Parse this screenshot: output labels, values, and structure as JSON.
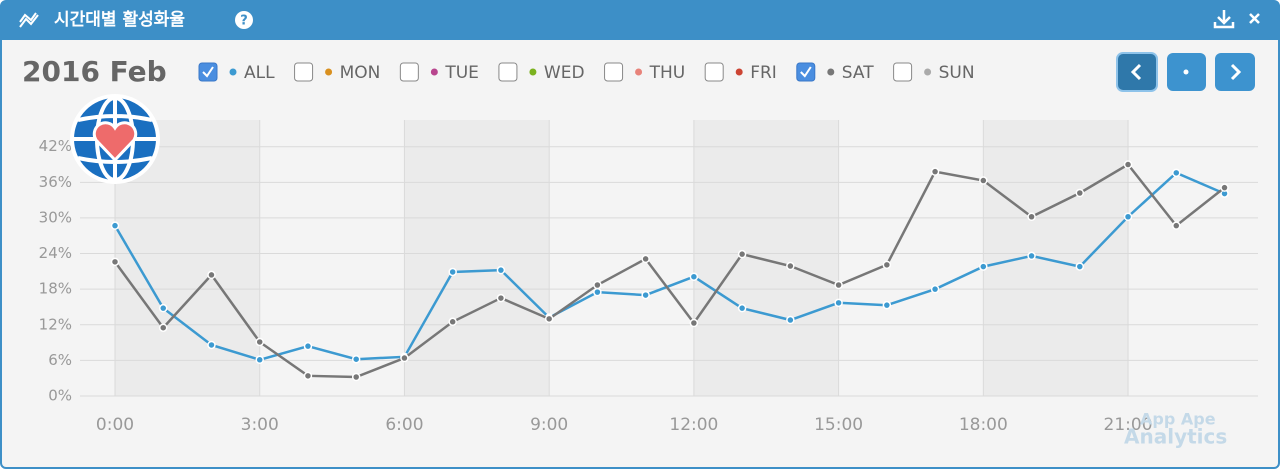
{
  "header": {
    "title": "시간대별 활성화율"
  },
  "period": "2016 Feb",
  "watermark": [
    "App Ape",
    "Analytics"
  ],
  "chart_data": {
    "type": "line",
    "categories": [
      "0:00",
      null,
      null,
      "3:00",
      null,
      null,
      "6:00",
      null,
      null,
      "9:00",
      null,
      null,
      "12:00",
      null,
      null,
      "15:00",
      null,
      null,
      "18:00",
      null,
      null,
      "21:00",
      null,
      null
    ],
    "ylim": [
      0,
      46.5
    ],
    "yticks": [
      {
        "value": 0,
        "label": "0%"
      },
      {
        "value": 6,
        "label": "6%"
      },
      {
        "value": 12,
        "label": "12%"
      },
      {
        "value": 18,
        "label": "18%"
      },
      {
        "value": 24,
        "label": "24%"
      },
      {
        "value": 30,
        "label": "30%"
      },
      {
        "value": 36,
        "label": "36%"
      },
      {
        "value": 42,
        "label": "42%"
      }
    ],
    "grid": true,
    "series": [
      {
        "name": "ALL",
        "color": "#3c9ad1",
        "checked": true,
        "values": [
          28.7,
          14.8,
          8.6,
          6.1,
          8.4,
          6.2,
          6.6,
          20.9,
          21.2,
          13.2,
          17.5,
          17.0,
          20.1,
          14.8,
          12.8,
          15.7,
          15.3,
          18.0,
          21.8,
          23.6,
          21.8,
          30.2,
          37.6,
          34.1
        ]
      },
      {
        "name": "MON",
        "color": "#d9901f",
        "checked": false
      },
      {
        "name": "TUE",
        "color": "#b8458e",
        "checked": false
      },
      {
        "name": "WED",
        "color": "#7bb21f",
        "checked": false
      },
      {
        "name": "THU",
        "color": "#e8837a",
        "checked": false
      },
      {
        "name": "FRI",
        "color": "#cc4433",
        "checked": false
      },
      {
        "name": "SAT",
        "color": "#777777",
        "checked": true,
        "values": [
          22.6,
          11.5,
          20.4,
          9.1,
          3.4,
          3.2,
          6.4,
          12.5,
          16.5,
          13.0,
          18.7,
          23.1,
          12.3,
          23.9,
          21.9,
          18.7,
          22.1,
          37.8,
          36.3,
          30.2,
          34.2,
          39.0,
          28.7,
          35.1
        ]
      },
      {
        "name": "SUN",
        "color": "#aaaaaa",
        "checked": false
      }
    ]
  }
}
